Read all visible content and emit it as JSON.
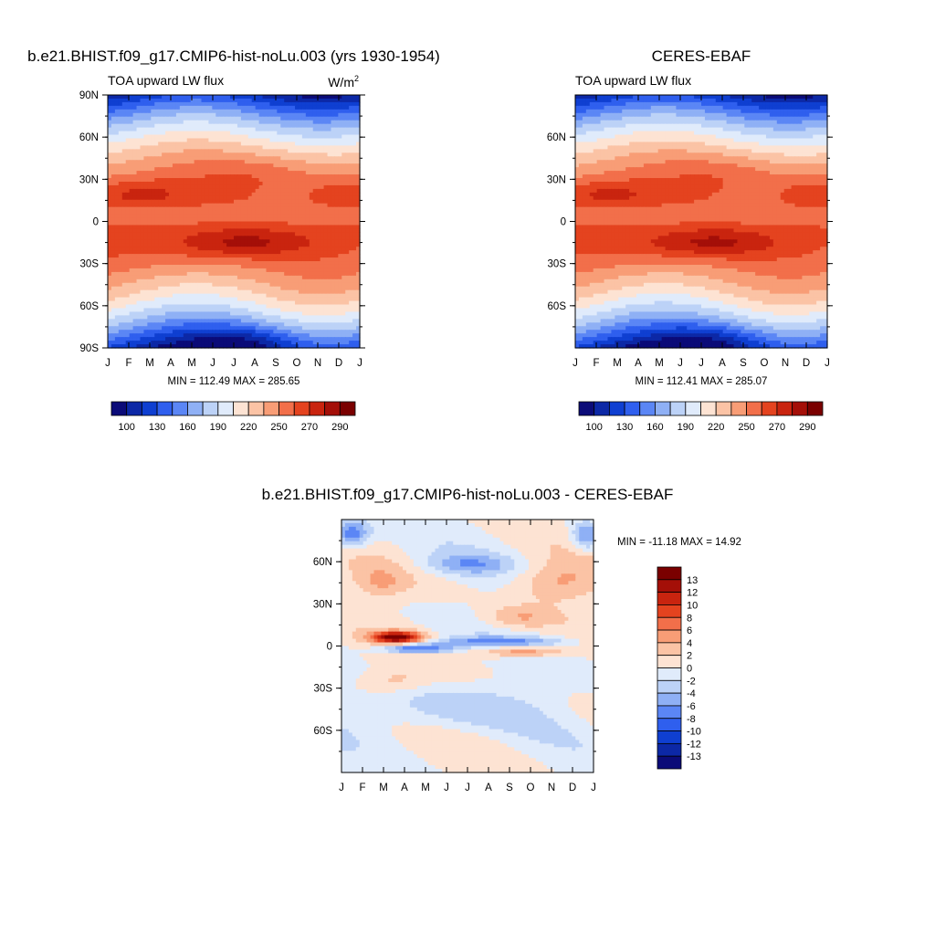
{
  "colors": {
    "p1_p2": [
      "#0b0b78",
      "#0c28a6",
      "#0f3fd1",
      "#2f5fee",
      "#5b86f5",
      "#8fb0f5",
      "#bcd2f7",
      "#e0ebfb",
      "#fde3d3",
      "#fbc3a5",
      "#f89d76",
      "#f26f4a",
      "#e4431f",
      "#c9240f",
      "#a40f08",
      "#7a0000"
    ],
    "diff": [
      "#0b0b78",
      "#0c28a6",
      "#0f3fd1",
      "#2f5fee",
      "#5b86f5",
      "#8fb0f5",
      "#bcd2f7",
      "#e0ebfb",
      "#fde3d3",
      "#fbc3a5",
      "#f89d76",
      "#f26f4a",
      "#e4431f",
      "#c9240f",
      "#a40f08",
      "#7a0000"
    ]
  },
  "panels": {
    "model": {
      "title": "b.e21.BHIST.f09_g17.CMIP6-hist-noLu.003 (yrs 1930-1954)",
      "left_string": "TOA upward LW flux",
      "units_base": "W/m",
      "units_sup": "2",
      "stats": "MIN = 112.49 MAX = 285.65"
    },
    "obs": {
      "title": "CERES-EBAF",
      "left_string": "TOA upward LW flux",
      "stats": "MIN = 112.41 MAX = 285.07"
    },
    "diff": {
      "title": "b.e21.BHIST.f09_g17.CMIP6-hist-noLu.003 - CERES-EBAF",
      "stats": "MIN = -11.18 MAX =  14.92"
    }
  },
  "chart_data": [
    {
      "type": "heatmap",
      "title": "b.e21.BHIST.f09_g17.CMIP6-hist-noLu.003 (yrs 1930-1954)",
      "subtitle": "TOA upward LW flux",
      "units": "W/m2",
      "x_ticklabels": [
        "J",
        "F",
        "M",
        "A",
        "M",
        "J",
        "J",
        "A",
        "S",
        "O",
        "N",
        "D",
        "J"
      ],
      "y_ticklabels": [
        "90N",
        "60N",
        "30N",
        "0",
        "30S",
        "60S",
        "90S"
      ],
      "y_range": [
        -90,
        90
      ],
      "colorbar_labels": [
        "100",
        "130",
        "160",
        "190",
        "220",
        "250",
        "270",
        "290"
      ],
      "min": 112.49,
      "max": 285.65
    },
    {
      "type": "heatmap",
      "title": "CERES-EBAF",
      "subtitle": "TOA upward LW flux",
      "x_ticklabels": [
        "J",
        "F",
        "M",
        "A",
        "M",
        "J",
        "J",
        "A",
        "S",
        "O",
        "N",
        "D",
        "J"
      ],
      "y_ticklabels": [
        "60N",
        "30N",
        "0",
        "30S",
        "60S"
      ],
      "y_range": [
        -90,
        90
      ],
      "colorbar_labels": [
        "100",
        "130",
        "160",
        "190",
        "220",
        "250",
        "270",
        "290"
      ],
      "min": 112.41,
      "max": 285.07
    },
    {
      "type": "heatmap",
      "title": "b.e21.BHIST.f09_g17.CMIP6-hist-noLu.003 - CERES-EBAF",
      "x_ticklabels": [
        "J",
        "F",
        "M",
        "A",
        "M",
        "J",
        "J",
        "A",
        "S",
        "O",
        "N",
        "D",
        "J"
      ],
      "y_ticklabels": [
        "60N",
        "30N",
        "0",
        "30S",
        "60S"
      ],
      "y_range": [
        -90,
        90
      ],
      "colorbar_labels": [
        "13",
        "12",
        "10",
        "8",
        "6",
        "4",
        "2",
        "0",
        "-2",
        "-4",
        "-6",
        "-8",
        "-10",
        "-12",
        "-13"
      ],
      "min": -11.18,
      "max": 14.92
    }
  ]
}
